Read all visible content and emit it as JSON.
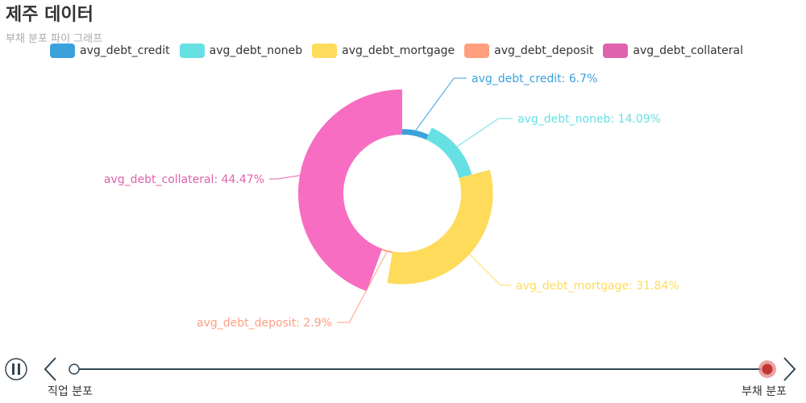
{
  "title": "제주 데이터",
  "subtitle": "부채 분포 파이 그래프",
  "chart_data": {
    "type": "pie",
    "variant": "donut",
    "categories": [
      "avg_debt_credit",
      "avg_debt_noneb",
      "avg_debt_mortgage",
      "avg_debt_deposit",
      "avg_debt_collateral"
    ],
    "values": [
      6.7,
      14.09,
      31.84,
      2.9,
      44.47
    ],
    "radius_proportional_to_value": true,
    "labels": [
      "avg_debt_credit: 6.7%",
      "avg_debt_noneb: 14.09%",
      "avg_debt_mortgage: 31.84%",
      "avg_debt_deposit: 2.9%",
      "avg_debt_collateral: 44.47%"
    ],
    "colors": [
      "#3ba1db",
      "#67e0e3",
      "#ffdb5c",
      "#ff9f7f",
      "#f76dc2"
    ],
    "label_colors": [
      "#3ba1db",
      "#67e0e3",
      "#ffdb5c",
      "#ff9f7f",
      "#e062ae"
    ],
    "legend_colors": [
      "#3ba1db",
      "#67e0e3",
      "#ffdb5c",
      "#ff9f7f",
      "#e062ae"
    ],
    "legend_position": "top"
  },
  "timeline": {
    "items": [
      "직업 분포",
      "부채 분포"
    ],
    "current_index": 1
  }
}
